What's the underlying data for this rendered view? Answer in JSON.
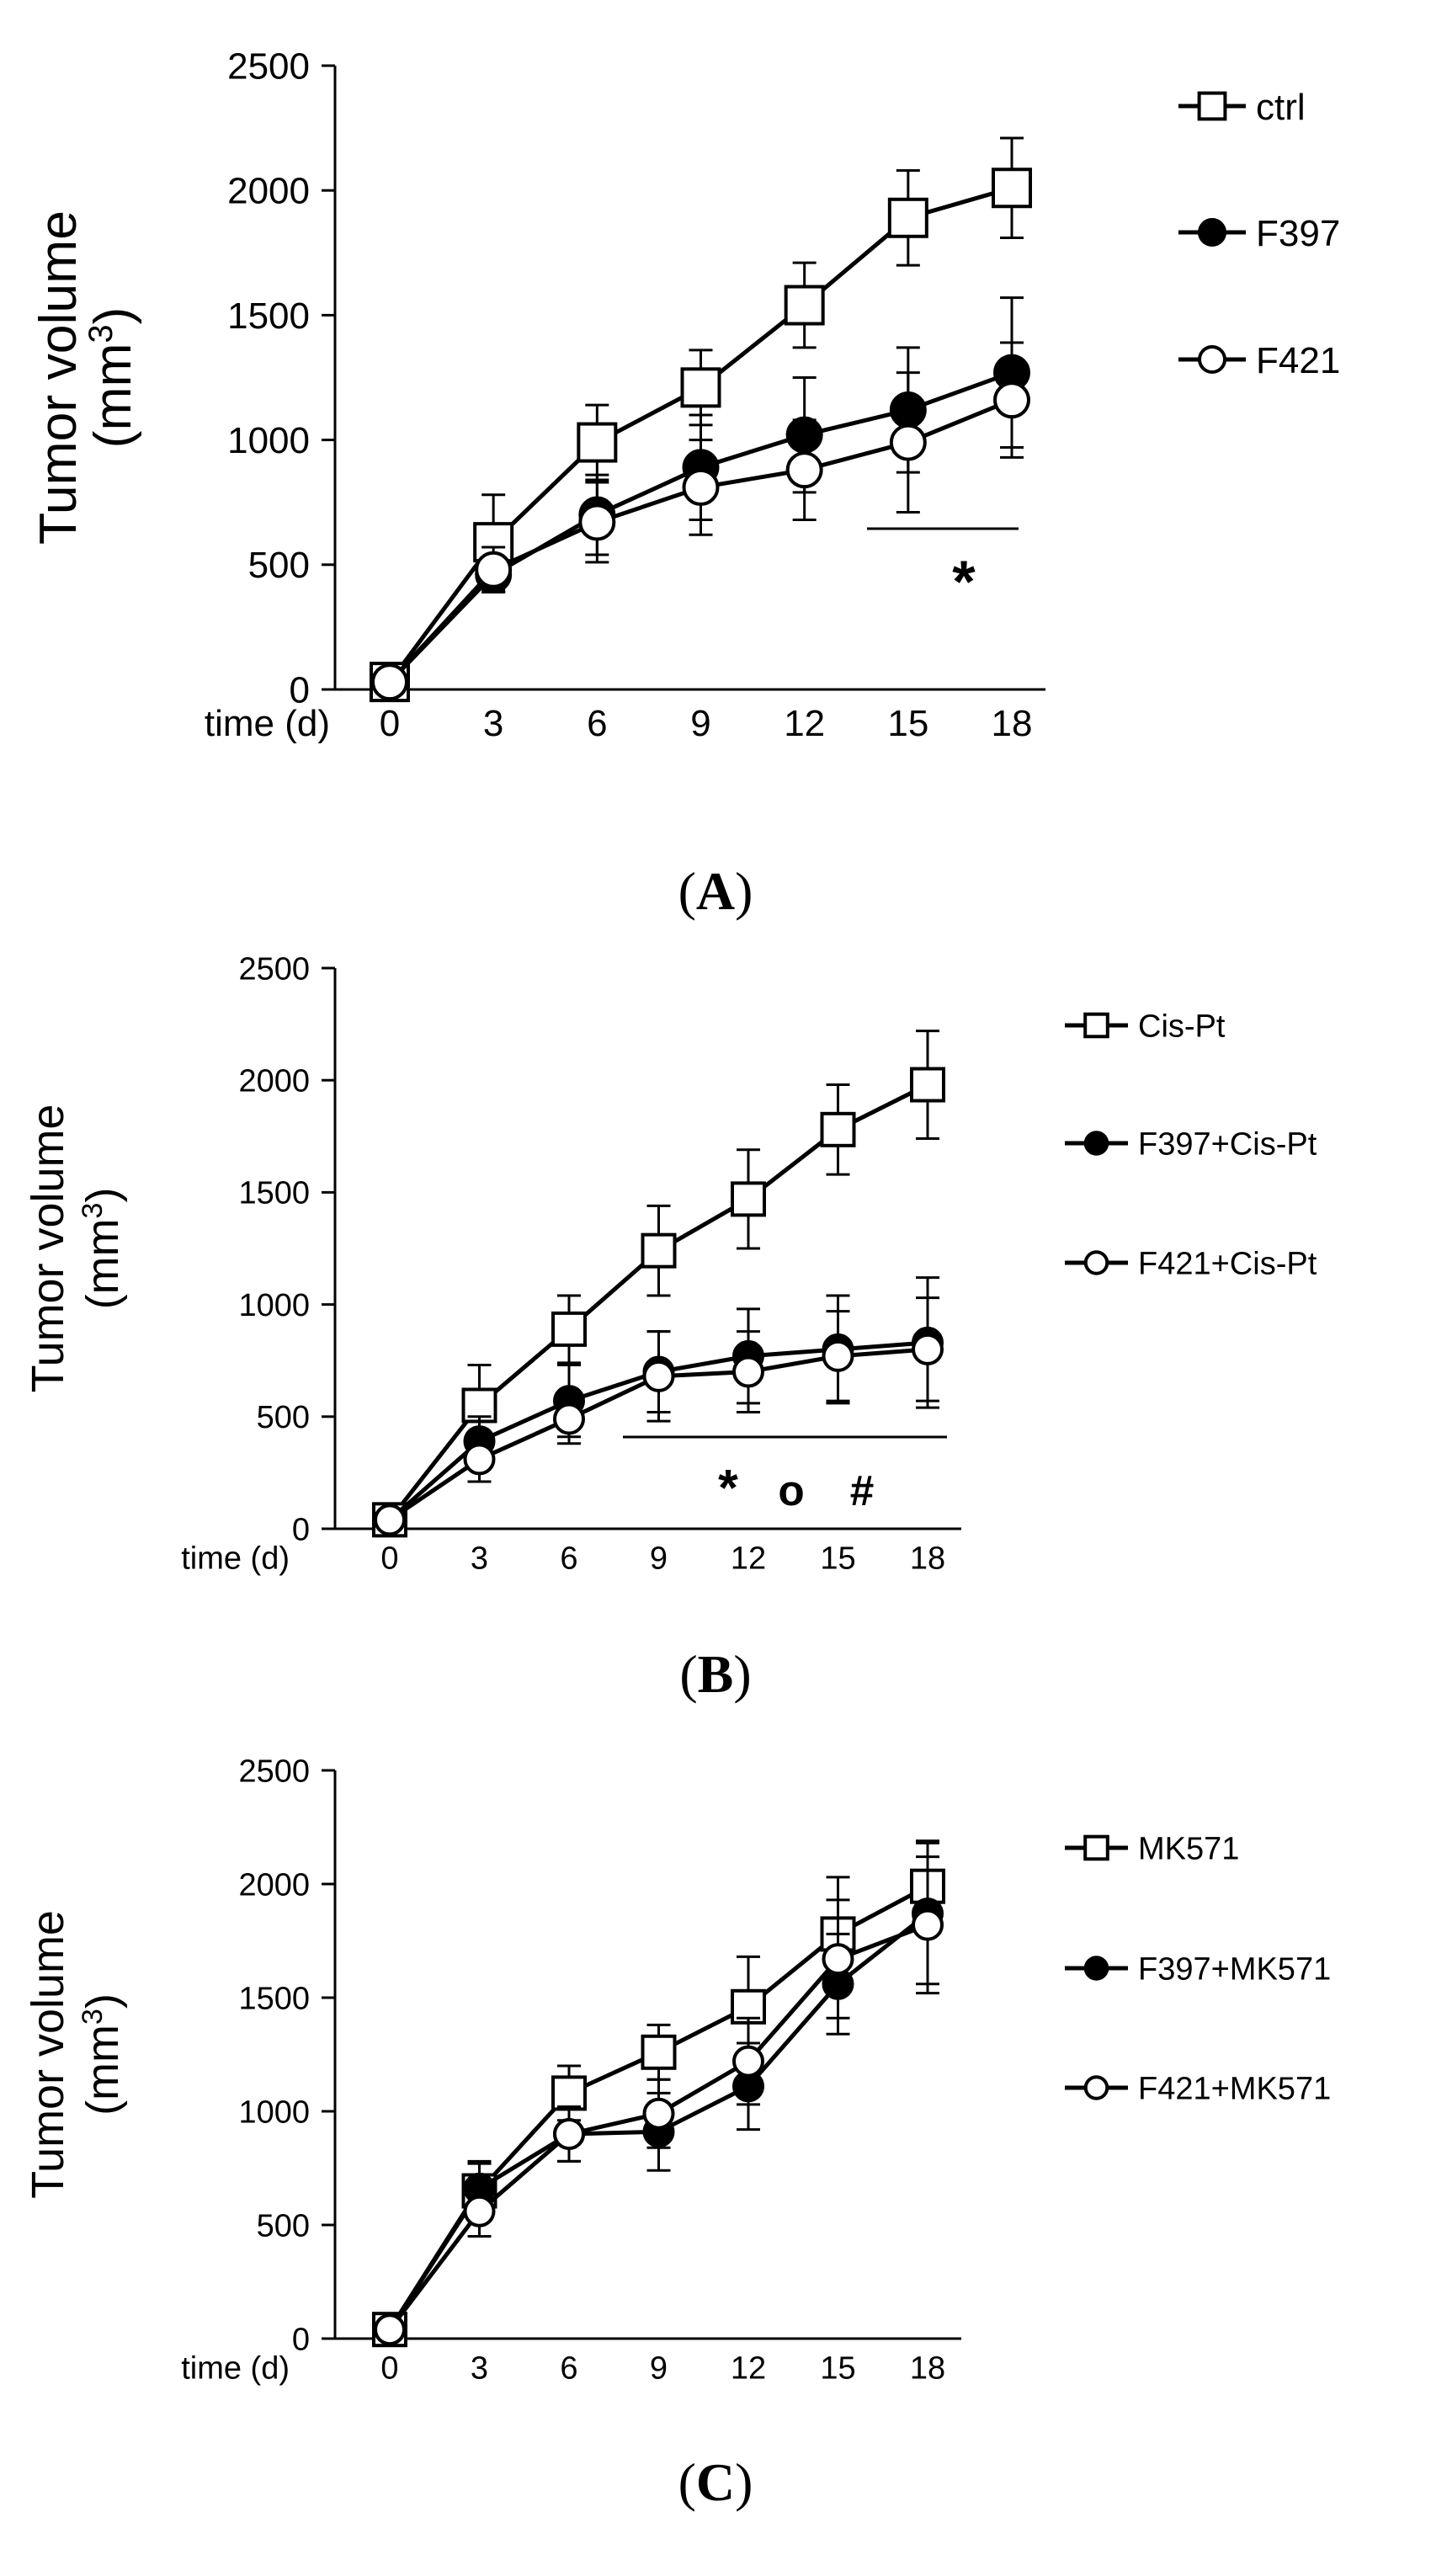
{
  "chart_data": [
    {
      "type": "line",
      "panel_label": "A",
      "xlabel": "time (d)",
      "ylabel": "Tumor volume",
      "yunit": "(mm3)",
      "yunit_base": "(mm",
      "yunit_sup": "3",
      "yunit_close": ")",
      "categories": [
        "0",
        "3",
        "6",
        "9",
        "12",
        "15",
        "18"
      ],
      "ylim": [
        0,
        2500
      ],
      "yticks": [
        "0",
        "500",
        "1000",
        "1500",
        "2000",
        "2500"
      ],
      "series": [
        {
          "name": "ctrl",
          "marker": "square",
          "values": [
            30,
            590,
            990,
            1210,
            1540,
            1890,
            2010
          ],
          "errors": [
            20,
            190,
            150,
            150,
            170,
            190,
            200
          ]
        },
        {
          "name": "F397",
          "marker": "filled-circle",
          "values": [
            30,
            460,
            700,
            890,
            1020,
            1120,
            1270
          ],
          "errors": [
            20,
            70,
            160,
            210,
            230,
            250,
            300
          ]
        },
        {
          "name": "F421",
          "marker": "open-circle",
          "values": [
            30,
            480,
            670,
            810,
            880,
            990,
            1160
          ],
          "errors": [
            20,
            90,
            160,
            190,
            200,
            280,
            230
          ]
        }
      ],
      "annotations": [
        "*"
      ],
      "significance_bar": {
        "from": 15,
        "to": 18
      }
    },
    {
      "type": "line",
      "panel_label": "B",
      "xlabel": "time (d)",
      "ylabel": "Tumor volume",
      "yunit": "(mm3)",
      "yunit_base": "(mm",
      "yunit_sup": "3",
      "yunit_close": ")",
      "categories": [
        "0",
        "3",
        "6",
        "9",
        "12",
        "15",
        "18"
      ],
      "ylim": [
        0,
        2500
      ],
      "yticks": [
        "0",
        "500",
        "1000",
        "1500",
        "2000",
        "2500"
      ],
      "series": [
        {
          "name": "Cis-Pt",
          "marker": "square",
          "values": [
            40,
            550,
            890,
            1240,
            1470,
            1780,
            1980
          ],
          "errors": [
            20,
            180,
            150,
            200,
            220,
            200,
            240
          ]
        },
        {
          "name": "F397+Cis-Pt",
          "marker": "filled-circle",
          "values": [
            40,
            390,
            570,
            700,
            770,
            800,
            830
          ],
          "errors": [
            20,
            110,
            160,
            180,
            210,
            240,
            290
          ]
        },
        {
          "name": "F421+Cis-Pt",
          "marker": "open-circle",
          "values": [
            40,
            310,
            490,
            680,
            700,
            770,
            800
          ],
          "errors": [
            20,
            100,
            110,
            200,
            180,
            200,
            230
          ]
        }
      ],
      "annotations": [
        "*",
        "o",
        "#"
      ],
      "significance_bar": {
        "from": 9,
        "to": 18
      }
    },
    {
      "type": "line",
      "panel_label": "C",
      "xlabel": "time (d)",
      "ylabel": "Tumor volume",
      "yunit": "(mm3)",
      "yunit_base": "(mm",
      "yunit_sup": "3",
      "yunit_close": ")",
      "categories": [
        "0",
        "3",
        "6",
        "9",
        "12",
        "15",
        "18"
      ],
      "ylim": [
        0,
        2500
      ],
      "yticks": [
        "0",
        "500",
        "1000",
        "1500",
        "2000",
        "2500"
      ],
      "series": [
        {
          "name": "MK571",
          "marker": "square",
          "values": [
            40,
            650,
            1080,
            1260,
            1460,
            1780,
            1990
          ],
          "errors": [
            20,
            130,
            120,
            120,
            220,
            250,
            200
          ]
        },
        {
          "name": "F397+MK571",
          "marker": "filled-circle",
          "values": [
            40,
            660,
            900,
            910,
            1110,
            1560,
            1870
          ],
          "errors": [
            20,
            110,
            120,
            170,
            190,
            220,
            310
          ]
        },
        {
          "name": "F421+MK571",
          "marker": "open-circle",
          "values": [
            40,
            560,
            900,
            990,
            1220,
            1670,
            1820
          ],
          "errors": [
            20,
            110,
            120,
            150,
            190,
            260,
            300
          ]
        }
      ],
      "annotations": [],
      "significance_bar": null
    }
  ]
}
